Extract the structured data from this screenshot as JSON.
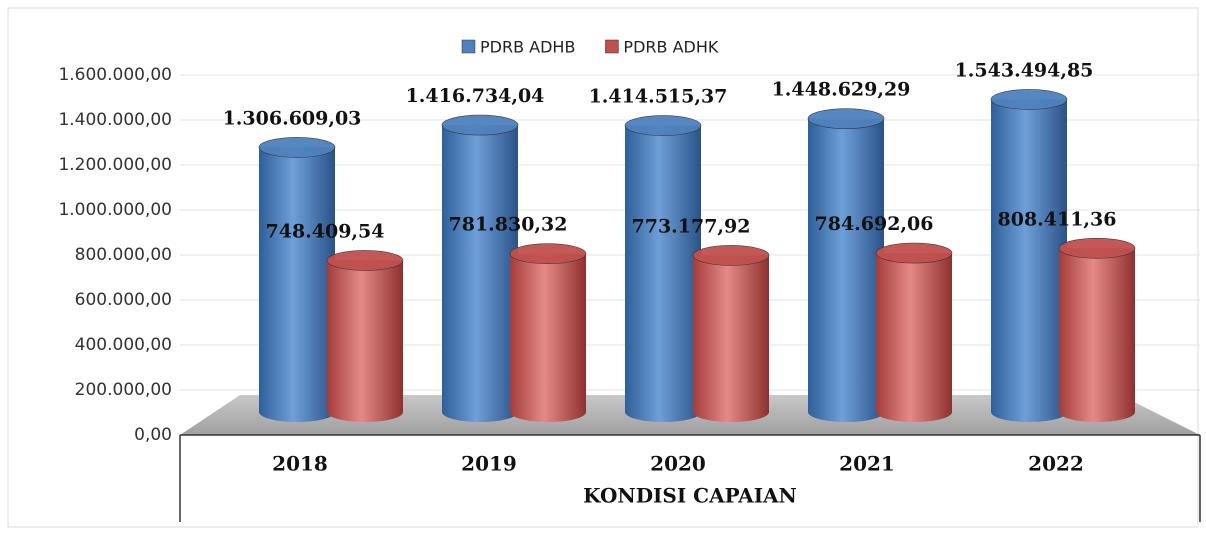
{
  "chart_data": {
    "type": "bar",
    "xlabel": "KONDISI CAPAIAN",
    "categories": [
      "2018",
      "2019",
      "2020",
      "2021",
      "2022"
    ],
    "series": [
      {
        "name": "PDRB ADHB",
        "color": "#4f81bd",
        "values": [
          1306609.03,
          1416734.04,
          1414515.37,
          1448629.29,
          1543494.85
        ],
        "value_labels": [
          "1.306.609,03",
          "1.416.734,04",
          "1.414.515,37",
          "1.448.629,29",
          "1.543.494,85"
        ]
      },
      {
        "name": "PDRB ADHK",
        "color": "#c0504d",
        "values": [
          748409.54,
          781830.32,
          773177.92,
          784692.06,
          808411.36
        ],
        "value_labels": [
          "748.409,54",
          "781.830,32",
          "773.177,92",
          "784.692,06",
          "808.411,36"
        ]
      }
    ],
    "ylim": [
      0,
      1600000
    ],
    "yticks": [
      {
        "value": 0,
        "label": "0,00"
      },
      {
        "value": 200000,
        "label": "200.000,00"
      },
      {
        "value": 400000,
        "label": "400.000,00"
      },
      {
        "value": 600000,
        "label": "600.000,00"
      },
      {
        "value": 800000,
        "label": "800.000,00"
      },
      {
        "value": 1000000,
        "label": "1.000.000,00"
      },
      {
        "value": 1200000,
        "label": "1.200.000,00"
      },
      {
        "value": 1400000,
        "label": "1.400.000,00"
      },
      {
        "value": 1600000,
        "label": "1.600.000,00"
      }
    ],
    "grid": true,
    "legend": "top"
  }
}
